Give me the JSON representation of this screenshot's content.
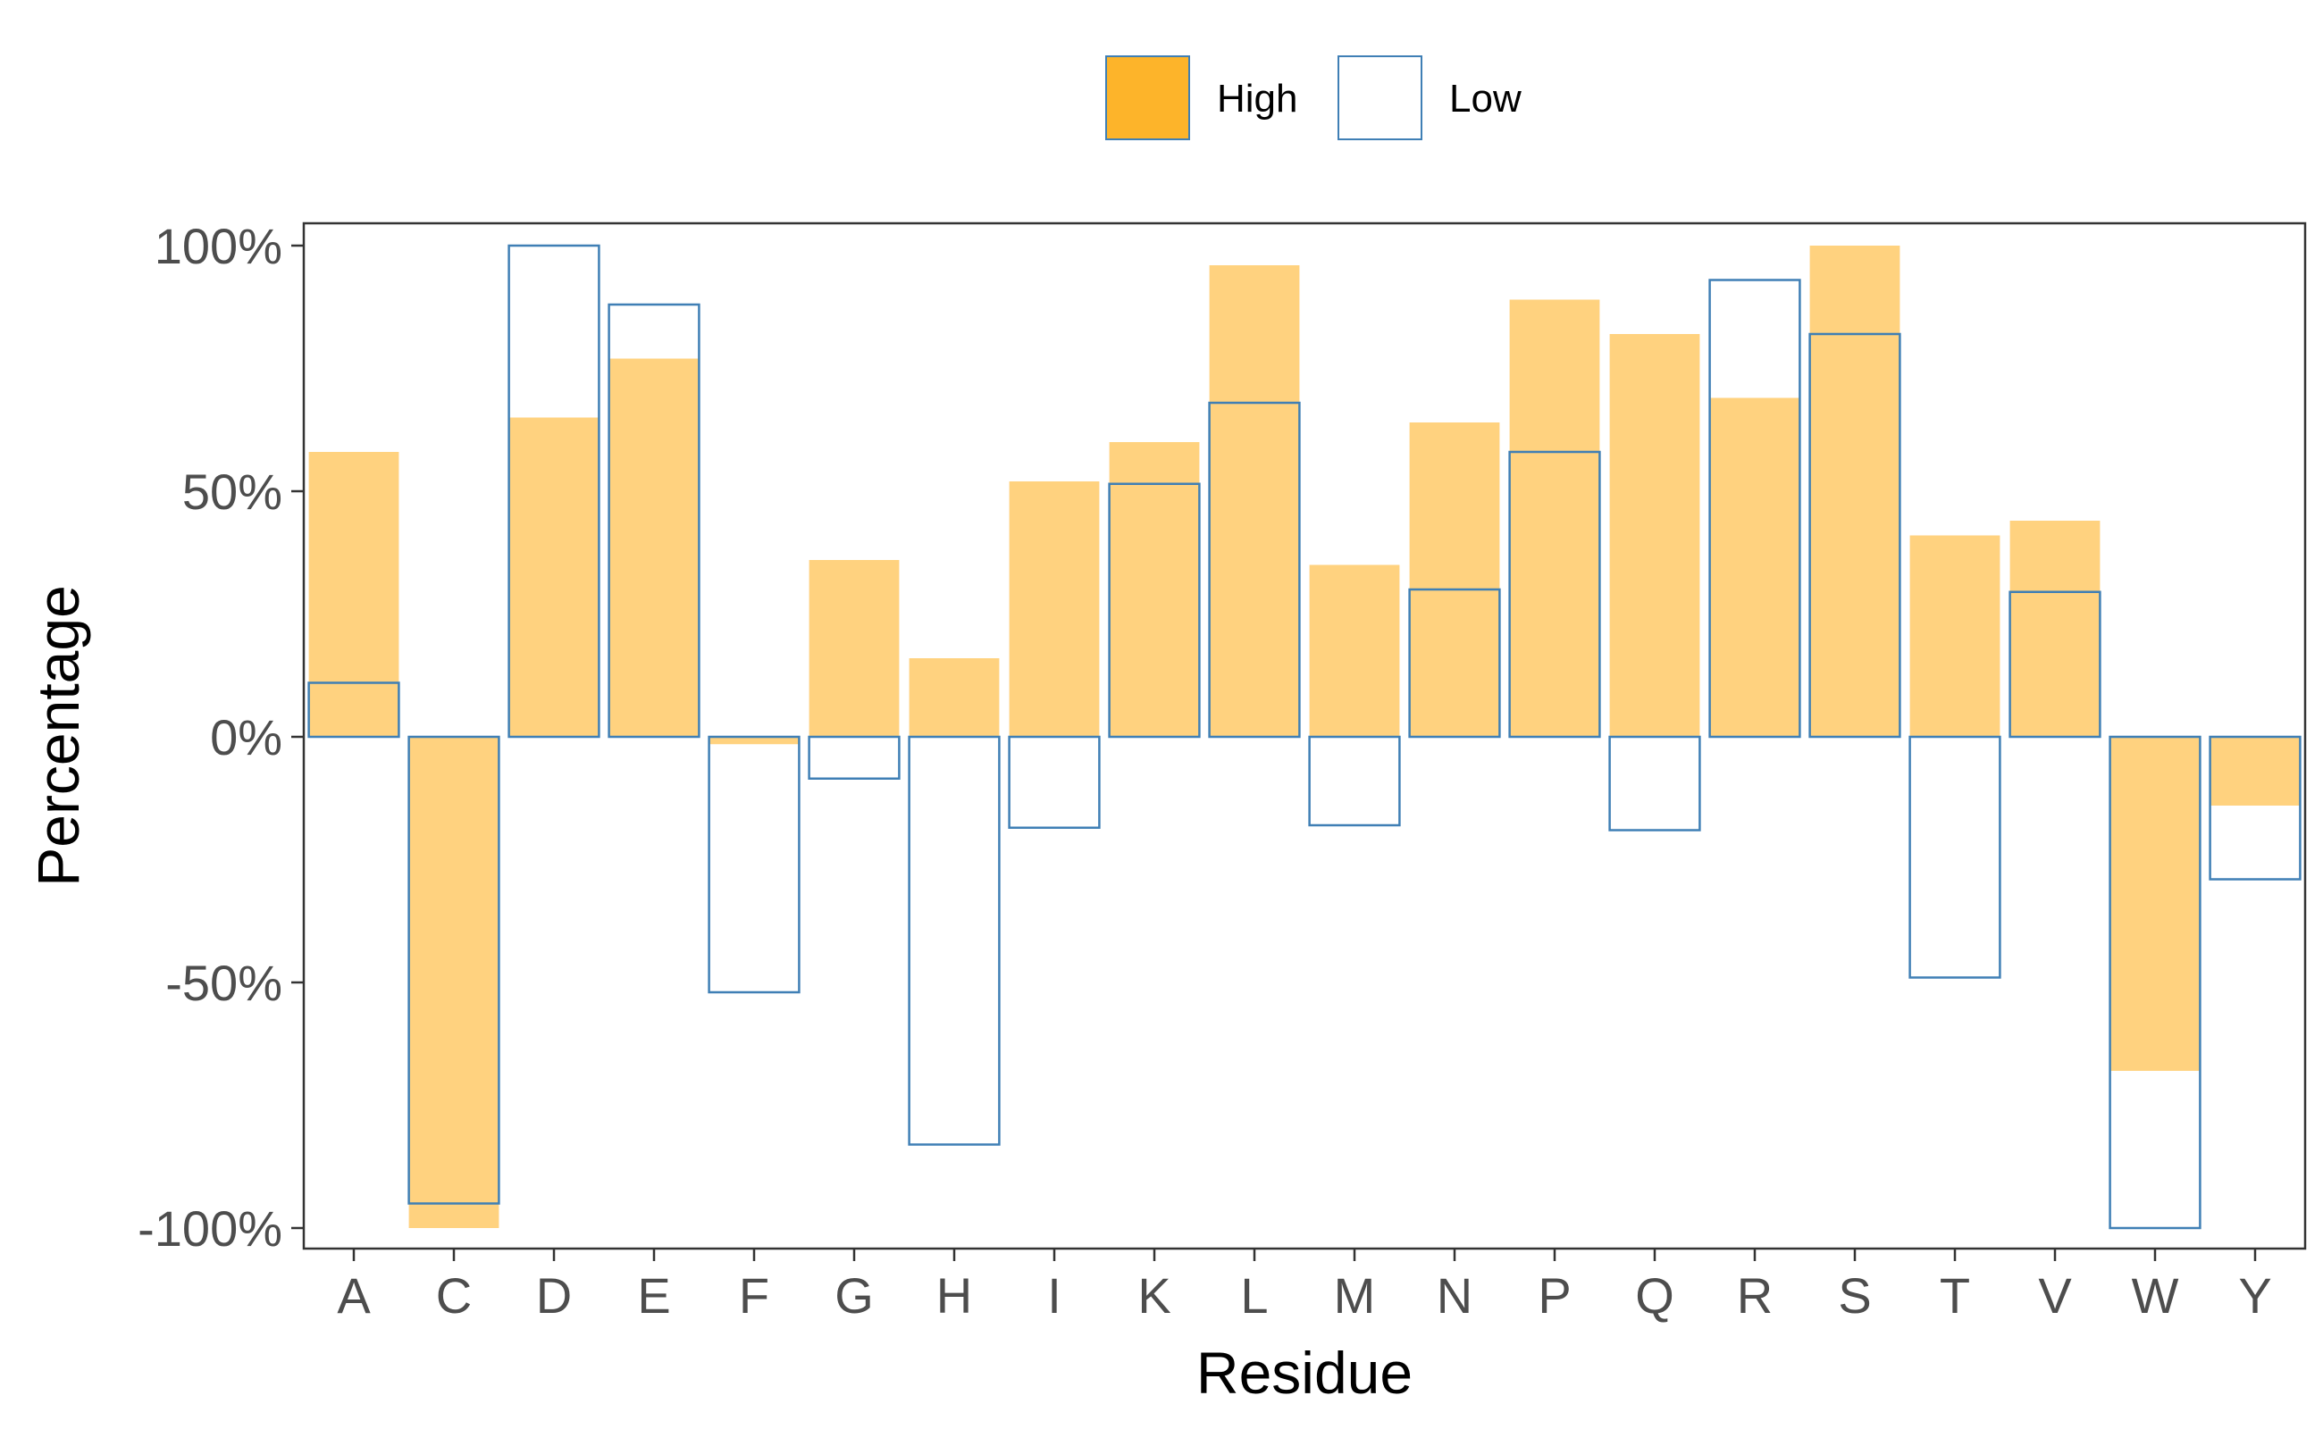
{
  "chart_data": {
    "type": "bar",
    "xlabel": "Residue",
    "ylabel": "Percentage",
    "categories": [
      "A",
      "C",
      "D",
      "E",
      "F",
      "G",
      "H",
      "I",
      "K",
      "L",
      "M",
      "N",
      "P",
      "Q",
      "R",
      "S",
      "T",
      "V",
      "W",
      "Y"
    ],
    "series": [
      {
        "name": "High",
        "fill": "#FFD27F",
        "legend_fill": "#FDB42A",
        "values": [
          58,
          -100,
          65,
          77,
          -1.5,
          36,
          16,
          52,
          60,
          96,
          35,
          64,
          89,
          82,
          69,
          100,
          41,
          44,
          -68,
          -14
        ]
      },
      {
        "name": "Low",
        "stroke": "#3F7FB5",
        "values": [
          11,
          -95,
          100,
          88,
          -52,
          -8.5,
          -83,
          -18.5,
          51.5,
          68,
          -18,
          30,
          58,
          -19,
          93,
          82,
          -49,
          29.5,
          -100,
          -29
        ]
      }
    ],
    "ylim": [
      -104,
      104
    ],
    "yticks": [
      100,
      50,
      0,
      -50,
      -100
    ],
    "ytick_labels": [
      "100%",
      "50%",
      "0%",
      "-50%",
      "-100%"
    ],
    "grid": false,
    "legend_position": "top"
  }
}
